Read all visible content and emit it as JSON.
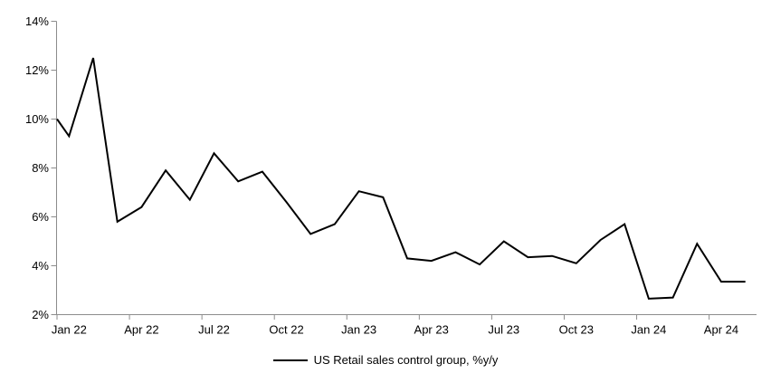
{
  "chart_data": {
    "type": "line",
    "title": "",
    "categories": [
      "Jan 22",
      "Feb 22",
      "Mar 22",
      "Apr 22",
      "May 22",
      "Jun 22",
      "Jul 22",
      "Aug 22",
      "Sep 22",
      "Oct 22",
      "Nov 22",
      "Dec 22",
      "Jan 23",
      "Feb 23",
      "Mar 23",
      "Apr 23",
      "May 23",
      "Jun 23",
      "Jul 23",
      "Aug 23",
      "Sep 23",
      "Oct 23",
      "Nov 23",
      "Dec 23",
      "Jan 24",
      "Feb 24",
      "Mar 24",
      "Apr 24",
      "May 24"
    ],
    "series": [
      {
        "name": "US Retail sales control group, %y/y",
        "color": "#000000",
        "stroke_width": 2,
        "values": [
          9.3,
          12.5,
          5.8,
          6.4,
          7.9,
          6.7,
          8.6,
          7.45,
          7.85,
          6.6,
          5.3,
          5.7,
          7.05,
          6.8,
          4.3,
          4.2,
          4.55,
          4.05,
          5.0,
          4.35,
          4.4,
          4.1,
          5.05,
          5.7,
          2.65,
          2.7,
          4.9,
          3.35,
          3.35
        ]
      }
    ],
    "lead_in_clip": {
      "value_at_left_axis": 10.0
    },
    "y_axis": {
      "min": 2,
      "max": 14,
      "step": 2,
      "tick_labels": [
        "2%",
        "4%",
        "6%",
        "8%",
        "10%",
        "12%",
        "14%"
      ]
    },
    "x_axis": {
      "label_interval_months": 3,
      "tick_labels": [
        "Jan 22",
        "Apr 22",
        "Jul 22",
        "Oct 22",
        "Jan 23",
        "Apr 23",
        "Jul 23",
        "Oct 23",
        "Jan 24",
        "Apr 24"
      ]
    },
    "legend": {
      "position": "bottom-center",
      "entries": [
        {
          "label": "US Retail sales control group, %y/y",
          "color": "#000000"
        }
      ]
    },
    "grid": false,
    "axis_color": "#8C8C8C",
    "text_color": "#000000",
    "background": "#FFFFFF"
  }
}
